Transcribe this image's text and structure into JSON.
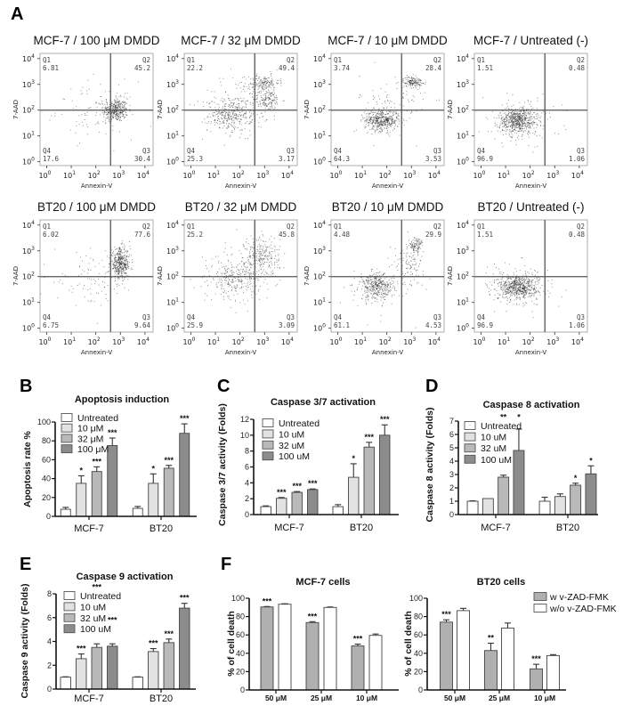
{
  "panel_labels": {
    "a": "A",
    "b": "B",
    "c": "C",
    "d": "D",
    "e": "E",
    "f": "F"
  },
  "flow": {
    "type": "scatter",
    "x_axis_label": "Annexin-V",
    "y_axis_label": "7-AAD",
    "scale": "log10",
    "tick_base": "10",
    "tick_exponents": [
      "0",
      "1",
      "2",
      "3",
      "4"
    ],
    "quadrant_names": [
      "Q1",
      "Q2",
      "Q3",
      "Q4"
    ],
    "plots": [
      {
        "title": "MCF-7 / 100 μM DMDD",
        "q1": "6.81",
        "q2": "45.2",
        "q3": "30.4",
        "q4": "17.6",
        "populations": [
          [
            2.8,
            2.0,
            0.25,
            0.22,
            380
          ],
          [
            2.0,
            2.0,
            0.8,
            0.55,
            90
          ]
        ]
      },
      {
        "title": "MCF-7 / 32 μM DMDD",
        "q1": "22.2",
        "q2": "49.4",
        "q3": "3.17",
        "q4": "25.3",
        "populations": [
          [
            1.6,
            1.8,
            0.45,
            0.3,
            300
          ],
          [
            3.0,
            3.05,
            0.3,
            0.15,
            150
          ],
          [
            3.1,
            2.4,
            0.3,
            0.2,
            150
          ],
          [
            2.1,
            2.3,
            0.8,
            0.6,
            160
          ]
        ]
      },
      {
        "title": "MCF-7 / 10 μM DMDD",
        "q1": "3.74",
        "q2": "28.4",
        "q3": "3.53",
        "q4": "64.3",
        "populations": [
          [
            1.8,
            1.6,
            0.35,
            0.2,
            450
          ],
          [
            3.05,
            3.1,
            0.2,
            0.1,
            150
          ],
          [
            2.3,
            2.2,
            0.7,
            0.6,
            100
          ]
        ]
      },
      {
        "title": "MCF-7 / Untreated (-)",
        "q1": "1.51",
        "q2": "0.48",
        "q3": "1.06",
        "q4": "96.9",
        "populations": [
          [
            1.5,
            1.6,
            0.4,
            0.25,
            600
          ],
          [
            1.7,
            1.6,
            0.8,
            0.5,
            100
          ]
        ]
      },
      {
        "title": "BT20 / 100 μM DMDD",
        "q1": "6.02",
        "q2": "77.6",
        "q3": "9.64",
        "q4": "6.75",
        "populations": [
          [
            3.0,
            2.5,
            0.2,
            0.3,
            420
          ],
          [
            1.9,
            1.9,
            0.8,
            0.5,
            100
          ]
        ]
      },
      {
        "title": "BT20 / 32 μM DMDD",
        "q1": "25.2",
        "q2": "45.8",
        "q3": "3.09",
        "q4": "25.9",
        "populations": [
          [
            1.8,
            1.9,
            0.5,
            0.35,
            250
          ],
          [
            2.9,
            2.8,
            0.35,
            0.4,
            250
          ],
          [
            2.0,
            2.2,
            0.8,
            0.6,
            80
          ]
        ]
      },
      {
        "title": "BT20 / 10 μM DMDD",
        "q1": "4.48",
        "q2": "29.9",
        "q3": "4.53",
        "q4": "61.1",
        "populations": [
          [
            1.6,
            1.6,
            0.35,
            0.25,
            380
          ],
          [
            3.2,
            3.2,
            0.15,
            0.15,
            100
          ],
          [
            2.9,
            2.5,
            0.3,
            0.4,
            100
          ],
          [
            1.9,
            1.8,
            0.8,
            0.6,
            60
          ]
        ]
      },
      {
        "title": "BT20 / Untreated (-)",
        "q1": "1.51",
        "q2": "0.48",
        "q3": "1.06",
        "q4": "96.9",
        "populations": [
          [
            1.5,
            1.6,
            0.4,
            0.25,
            600
          ],
          [
            1.7,
            1.6,
            0.8,
            0.5,
            100
          ]
        ]
      }
    ]
  },
  "chart_data": [
    {
      "type": "bar",
      "title": "Apoptosis induction",
      "ylabel": "Apoptosis rate %",
      "categories": [
        "MCF-7",
        "BT20"
      ],
      "ylim": [
        0,
        100
      ],
      "yticks": [
        0,
        20,
        40,
        60,
        80,
        100
      ],
      "legend_position": "top-left",
      "series": [
        {
          "name": "Untreated",
          "color": "#ffffff",
          "values": [
            7.5,
            8.5
          ],
          "errors": [
            2,
            2
          ],
          "significance": [
            "",
            ""
          ]
        },
        {
          "name": "10 μM",
          "color": "#e2e2e2",
          "values": [
            35,
            35
          ],
          "errors": [
            8,
            10
          ],
          "significance": [
            "*",
            "*"
          ]
        },
        {
          "name": "32 μM",
          "color": "#b9b9b9",
          "values": [
            47.5,
            51
          ],
          "errors": [
            5,
            3
          ],
          "significance": [
            "***",
            "***"
          ]
        },
        {
          "name": "100 μM",
          "color": "#8c8c8c",
          "values": [
            75,
            88
          ],
          "errors": [
            8,
            10
          ],
          "significance": [
            "***",
            "***"
          ]
        }
      ]
    },
    {
      "type": "bar",
      "title": "Caspase 3/7 activation",
      "ylabel": "Caspase 3/7 activity (Folds)",
      "categories": [
        "MCF-7",
        "BT20"
      ],
      "ylim": [
        0,
        12
      ],
      "yticks": [
        0,
        2,
        4,
        6,
        8,
        10,
        12
      ],
      "legend_position": "top-left",
      "series": [
        {
          "name": "Untreated",
          "color": "#ffffff",
          "values": [
            1.0,
            1.0
          ],
          "errors": [
            0.1,
            0.25
          ],
          "significance": [
            "",
            ""
          ]
        },
        {
          "name": "10 uM",
          "color": "#e2e2e2",
          "values": [
            2.05,
            4.7
          ],
          "errors": [
            0.1,
            1.7
          ],
          "significance": [
            "***",
            "*"
          ]
        },
        {
          "name": "32 uM",
          "color": "#b9b9b9",
          "values": [
            2.8,
            8.5
          ],
          "errors": [
            0.1,
            0.6
          ],
          "significance": [
            "***",
            "***"
          ]
        },
        {
          "name": "100 uM",
          "color": "#8c8c8c",
          "values": [
            3.15,
            10.0
          ],
          "errors": [
            0.08,
            1.3
          ],
          "significance": [
            "***",
            "***"
          ]
        }
      ]
    },
    {
      "type": "bar",
      "title": "Caspase 8 activation",
      "ylabel": "Caspase 8 activity (Folds)",
      "categories": [
        "MCF-7",
        "BT20"
      ],
      "ylim": [
        0,
        7
      ],
      "yticks": [
        0,
        1,
        2,
        3,
        4,
        5,
        6,
        7
      ],
      "legend_position": "top-left",
      "series": [
        {
          "name": "Untreated",
          "color": "#ffffff",
          "values": [
            1.0,
            1.0
          ],
          "errors": [
            0.03,
            0.3
          ],
          "significance": [
            "",
            ""
          ]
        },
        {
          "name": "10 uM",
          "color": "#e2e2e2",
          "values": [
            1.2,
            1.35
          ],
          "errors": [
            0,
            0.2
          ],
          "significance": [
            "",
            ""
          ]
        },
        {
          "name": "32 uM",
          "color": "#b9b9b9",
          "values": [
            2.8,
            2.2
          ],
          "errors": [
            0.15,
            0.15
          ],
          "significance": [
            "**",
            "*"
          ]
        },
        {
          "name": "100 uM",
          "color": "#8c8c8c",
          "values": [
            4.8,
            3.05
          ],
          "errors": [
            1.6,
            0.6
          ],
          "significance": [
            "*",
            "*"
          ]
        }
      ]
    },
    {
      "type": "bar",
      "title": "Caspase 9 activation",
      "ylabel": "Caspase 9 activity (Folds)",
      "categories": [
        "MCF-7",
        "BT20"
      ],
      "ylim": [
        0,
        8
      ],
      "yticks": [
        0,
        2,
        4,
        6,
        8
      ],
      "legend_position": "top-left",
      "series": [
        {
          "name": "Untreated",
          "color": "#ffffff",
          "values": [
            1.0,
            1.0
          ],
          "errors": [
            0.03,
            0.03
          ],
          "significance": [
            "",
            ""
          ]
        },
        {
          "name": "10 uM",
          "color": "#e2e2e2",
          "values": [
            2.55,
            3.15
          ],
          "errors": [
            0.4,
            0.25
          ],
          "significance": [
            "***",
            "***"
          ]
        },
        {
          "name": "32 uM",
          "color": "#b9b9b9",
          "values": [
            3.5,
            3.9
          ],
          "errors": [
            0.3,
            0.3
          ],
          "significance": [
            "***",
            "***"
          ]
        },
        {
          "name": "100 uM",
          "color": "#8c8c8c",
          "values": [
            3.6,
            6.8
          ],
          "errors": [
            0.2,
            0.4
          ],
          "significance": [
            "***",
            "***"
          ]
        }
      ]
    },
    {
      "type": "bar",
      "title": "MCF-7 cells",
      "ylabel": "% of cell death",
      "categories": [
        "50 μM",
        "25 μM",
        "10 μM"
      ],
      "ylim": [
        0,
        100
      ],
      "yticks": [
        0,
        20,
        40,
        60,
        80,
        100
      ],
      "series": [
        {
          "name": "w v-ZAD-FMK",
          "color": "#b0b0b0",
          "values": [
            90.5,
            73.5,
            48
          ],
          "errors": [
            0.5,
            1,
            2
          ],
          "significance": [
            "***",
            "***",
            "***"
          ]
        },
        {
          "name": "w/o v-ZAD-FMK",
          "color": "#ffffff",
          "values": [
            93.5,
            90,
            59.5
          ],
          "errors": [
            0.5,
            0.5,
            1.5
          ],
          "significance": [
            "",
            "",
            ""
          ]
        }
      ]
    },
    {
      "type": "bar",
      "title": "BT20 cells",
      "ylabel": "% of cell death",
      "categories": [
        "50 μM",
        "25 μM",
        "10 μM"
      ],
      "ylim": [
        0,
        100
      ],
      "yticks": [
        0,
        20,
        40,
        60,
        80,
        100
      ],
      "legend_position": "top-right",
      "series": [
        {
          "name": "w v-ZAD-FMK",
          "color": "#b0b0b0",
          "values": [
            74,
            43,
            23
          ],
          "errors": [
            2.5,
            8,
            5
          ],
          "significance": [
            "***",
            "**",
            "***"
          ]
        },
        {
          "name": "w/o v-ZAD-FMK",
          "color": "#ffffff",
          "values": [
            86.5,
            67.5,
            37.5
          ],
          "errors": [
            2.5,
            5.5,
            1
          ],
          "significance": [
            "",
            "",
            ""
          ]
        }
      ]
    }
  ]
}
